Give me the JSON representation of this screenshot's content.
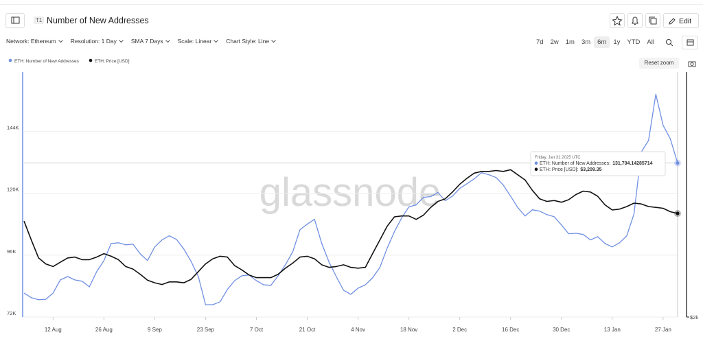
{
  "header": {
    "badge": "T1",
    "title": "Number of New Addresses",
    "edit": "Edit"
  },
  "toolbar": {
    "dropdowns": [
      "Network: Ethereum",
      "Resolution: 1 Day",
      "SMA 7 Days",
      "Scale: Linear",
      "Chart Style: Line"
    ],
    "ranges": [
      "7d",
      "2w",
      "1m",
      "3m",
      "6m",
      "1y",
      "YTD",
      "All"
    ],
    "active_range": "6m",
    "reset_zoom": "Reset zoom"
  },
  "chart_data": {
    "type": "line",
    "watermark": "glassnode",
    "x": [
      "4 Aug",
      "6 Aug",
      "8 Aug",
      "10 Aug",
      "12 Aug",
      "14 Aug",
      "16 Aug",
      "18 Aug",
      "20 Aug",
      "22 Aug",
      "24 Aug",
      "26 Aug",
      "28 Aug",
      "30 Aug",
      "1 Sep",
      "3 Sep",
      "5 Sep",
      "7 Sep",
      "9 Sep",
      "11 Sep",
      "13 Sep",
      "15 Sep",
      "17 Sep",
      "19 Sep",
      "21 Sep",
      "23 Sep",
      "25 Sep",
      "27 Sep",
      "29 Sep",
      "1 Oct",
      "3 Oct",
      "5 Oct",
      "7 Oct",
      "9 Oct",
      "11 Oct",
      "13 Oct",
      "15 Oct",
      "17 Oct",
      "19 Oct",
      "21 Oct",
      "23 Oct",
      "25 Oct",
      "27 Oct",
      "29 Oct",
      "31 Oct",
      "2 Nov",
      "4 Nov",
      "6 Nov",
      "8 Nov",
      "10 Nov",
      "12 Nov",
      "14 Nov",
      "16 Nov",
      "18 Nov",
      "20 Nov",
      "22 Nov",
      "24 Nov",
      "26 Nov",
      "28 Nov",
      "30 Nov",
      "2 Dec",
      "4 Dec",
      "6 Dec",
      "8 Dec",
      "10 Dec",
      "12 Dec",
      "14 Dec",
      "16 Dec",
      "18 Dec",
      "20 Dec",
      "22 Dec",
      "24 Dec",
      "26 Dec",
      "28 Dec",
      "30 Dec",
      "1 Jan",
      "3 Jan",
      "5 Jan",
      "7 Jan",
      "9 Jan",
      "11 Jan",
      "13 Jan",
      "15 Jan",
      "17 Jan",
      "19 Jan",
      "21 Jan",
      "23 Jan",
      "25 Jan",
      "27 Jan",
      "29 Jan",
      "31 Jan"
    ],
    "xticks": [
      "12 Aug",
      "26 Aug",
      "9 Sep",
      "23 Sep",
      "7 Oct",
      "21 Oct",
      "4 Nov",
      "18 Nov",
      "2 Dec",
      "16 Dec",
      "30 Dec",
      "13 Jan",
      "27 Jan"
    ],
    "ylim": [
      72000,
      167000
    ],
    "yticks": [
      {
        "value": 72000,
        "label": "72K"
      },
      {
        "value": 96000,
        "label": "96K"
      },
      {
        "value": 120000,
        "label": "120K"
      },
      {
        "value": 144000,
        "label": "144K"
      }
    ],
    "y2lim": [
      2000,
      4860
    ],
    "y2ticks": [
      {
        "value": 2000,
        "label": "$2k"
      }
    ],
    "grid": true,
    "series": [
      {
        "name": "ETH: Number of New Addresses",
        "color": "#6f8fe3",
        "axis": "y",
        "values": [
          81300,
          79500,
          78700,
          78900,
          81300,
          86400,
          87700,
          86400,
          85900,
          83700,
          89600,
          93900,
          100500,
          100800,
          100000,
          100300,
          96500,
          93900,
          99200,
          101900,
          103500,
          102100,
          98400,
          93600,
          87700,
          76800,
          76800,
          77900,
          82700,
          86100,
          88000,
          88300,
          86100,
          84500,
          84300,
          88000,
          92300,
          97300,
          105900,
          108000,
          109900,
          100500,
          93300,
          87700,
          82400,
          80800,
          83200,
          84500,
          87200,
          91200,
          98700,
          105100,
          110400,
          114700,
          115500,
          118400,
          118700,
          120300,
          117100,
          118900,
          121900,
          123700,
          125600,
          128000,
          127200,
          126100,
          123200,
          118900,
          114400,
          111200,
          113600,
          113100,
          111700,
          110900,
          107700,
          104300,
          104500,
          104000,
          101900,
          103200,
          100500,
          99200,
          100800,
          103500,
          112000,
          136000,
          140500,
          158400,
          146400,
          141100,
          131704.14285714
        ]
      },
      {
        "name": "ETH: Price [USD]",
        "color": "#111111",
        "axis": "y2",
        "values": [
          3120,
          2900,
          2690,
          2620,
          2590,
          2640,
          2690,
          2700,
          2670,
          2670,
          2700,
          2740,
          2710,
          2670,
          2590,
          2560,
          2500,
          2430,
          2400,
          2380,
          2410,
          2410,
          2400,
          2440,
          2530,
          2620,
          2680,
          2710,
          2700,
          2600,
          2550,
          2490,
          2460,
          2460,
          2460,
          2500,
          2570,
          2630,
          2700,
          2710,
          2680,
          2610,
          2580,
          2590,
          2610,
          2580,
          2570,
          2580,
          2740,
          2900,
          3060,
          3170,
          3180,
          3180,
          3140,
          3190,
          3280,
          3350,
          3380,
          3460,
          3550,
          3620,
          3680,
          3700,
          3700,
          3710,
          3700,
          3720,
          3660,
          3600,
          3480,
          3380,
          3350,
          3360,
          3340,
          3370,
          3430,
          3470,
          3460,
          3410,
          3310,
          3250,
          3260,
          3290,
          3330,
          3320,
          3290,
          3280,
          3270,
          3230,
          3209.35
        ]
      }
    ],
    "tooltip": {
      "date": "Friday, Jan 31 2025 UTC",
      "rows": [
        {
          "label": "ETH: Number of New Addresses:",
          "value": "131,704.14285714"
        },
        {
          "label": "ETH: Price [USD]:",
          "value": "$3,209.35"
        }
      ]
    }
  }
}
